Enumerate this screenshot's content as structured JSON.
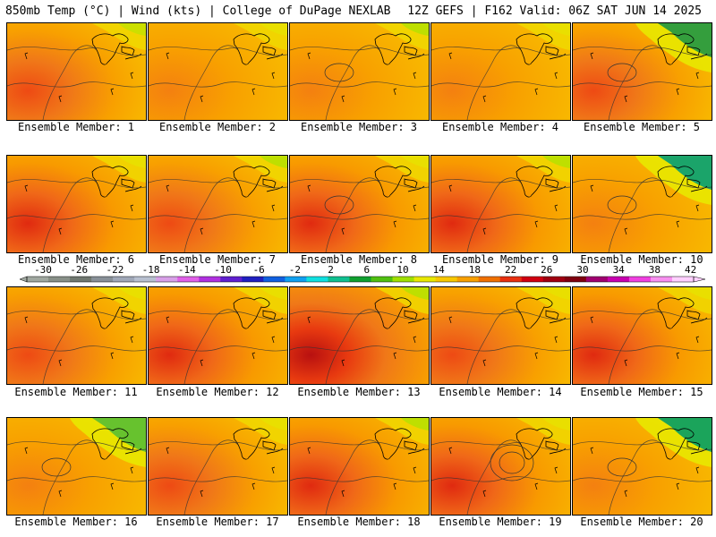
{
  "header": {
    "left": "850mb Temp (°C) | Wind (kts) | College of DuPage NEXLAB",
    "right": "12Z GEFS | F162 Valid: 06Z SAT JUN 14 2025"
  },
  "members": [
    {
      "label": "Ensemble Member: 1",
      "style": "warm",
      "lakes_color": "#c8e000",
      "hot": 1
    },
    {
      "label": "Ensemble Member: 2",
      "style": "warm",
      "lakes_color": "#e8e000",
      "hot": 0
    },
    {
      "label": "Ensemble Member: 3",
      "style": "warm",
      "lakes_color": "#b8e000",
      "hot": 0
    },
    {
      "label": "Ensemble Member: 4",
      "style": "warm",
      "lakes_color": "#e8e000",
      "hot": 0
    },
    {
      "label": "Ensemble Member: 5",
      "style": "cool",
      "lakes_color": "#2a9a40",
      "hot": 1
    },
    {
      "label": "Ensemble Member: 6",
      "style": "warm",
      "lakes_color": "#e8e000",
      "hot": 2
    },
    {
      "label": "Ensemble Member: 7",
      "style": "warm",
      "lakes_color": "#b8e000",
      "hot": 1
    },
    {
      "label": "Ensemble Member: 8",
      "style": "warm",
      "lakes_color": "#e8e000",
      "hot": 2
    },
    {
      "label": "Ensemble Member: 9",
      "style": "warm",
      "lakes_color": "#b8e000",
      "hot": 2
    },
    {
      "label": "Ensemble Member: 10",
      "style": "cool",
      "lakes_color": "#10a070",
      "hot": 0
    },
    {
      "label": "Ensemble Member: 11",
      "style": "warm",
      "lakes_color": "#e8e000",
      "hot": 1
    },
    {
      "label": "Ensemble Member: 12",
      "style": "warm",
      "lakes_color": "#e8e000",
      "hot": 2
    },
    {
      "label": "Ensemble Member: 13",
      "style": "warm",
      "lakes_color": "#b8e000",
      "hot": 3
    },
    {
      "label": "Ensemble Member: 14",
      "style": "warm",
      "lakes_color": "#e8e000",
      "hot": 1
    },
    {
      "label": "Ensemble Member: 15",
      "style": "warm",
      "lakes_color": "#e8e000",
      "hot": 2
    },
    {
      "label": "Ensemble Member: 16",
      "style": "cool",
      "lakes_color": "#60c030",
      "hot": 0
    },
    {
      "label": "Ensemble Member: 17",
      "style": "warm",
      "lakes_color": "#e8e000",
      "hot": 1
    },
    {
      "label": "Ensemble Member: 18",
      "style": "warm",
      "lakes_color": "#b8e000",
      "hot": 2
    },
    {
      "label": "Ensemble Member: 19",
      "style": "warm",
      "lakes_color": "#e8e000",
      "hot": 2
    },
    {
      "label": "Ensemble Member: 20",
      "style": "cool",
      "lakes_color": "#10a060",
      "hot": 0
    }
  ],
  "colorbar": {
    "labels": [
      "-30",
      "-26",
      "-22",
      "-18",
      "-14",
      "-10",
      "-6",
      "-2",
      "2",
      "6",
      "10",
      "14",
      "18",
      "22",
      "26",
      "30",
      "34",
      "38",
      "42"
    ],
    "colors": [
      "#a0a8a0",
      "#889088",
      "#707870",
      "#889098",
      "#a0a8b8",
      "#b8c0d0",
      "#d8a0e8",
      "#e060e8",
      "#b030e0",
      "#6020d0",
      "#2020c0",
      "#1060e0",
      "#10a0f0",
      "#10e0e0",
      "#10c090",
      "#10a030",
      "#50c010",
      "#a0e000",
      "#e8e800",
      "#f8c800",
      "#f8a000",
      "#f07000",
      "#e83010",
      "#d00010",
      "#a00010",
      "#800010",
      "#a00070",
      "#c800b0",
      "#f040e0",
      "#f890f0",
      "#ffd0ff"
    ]
  }
}
